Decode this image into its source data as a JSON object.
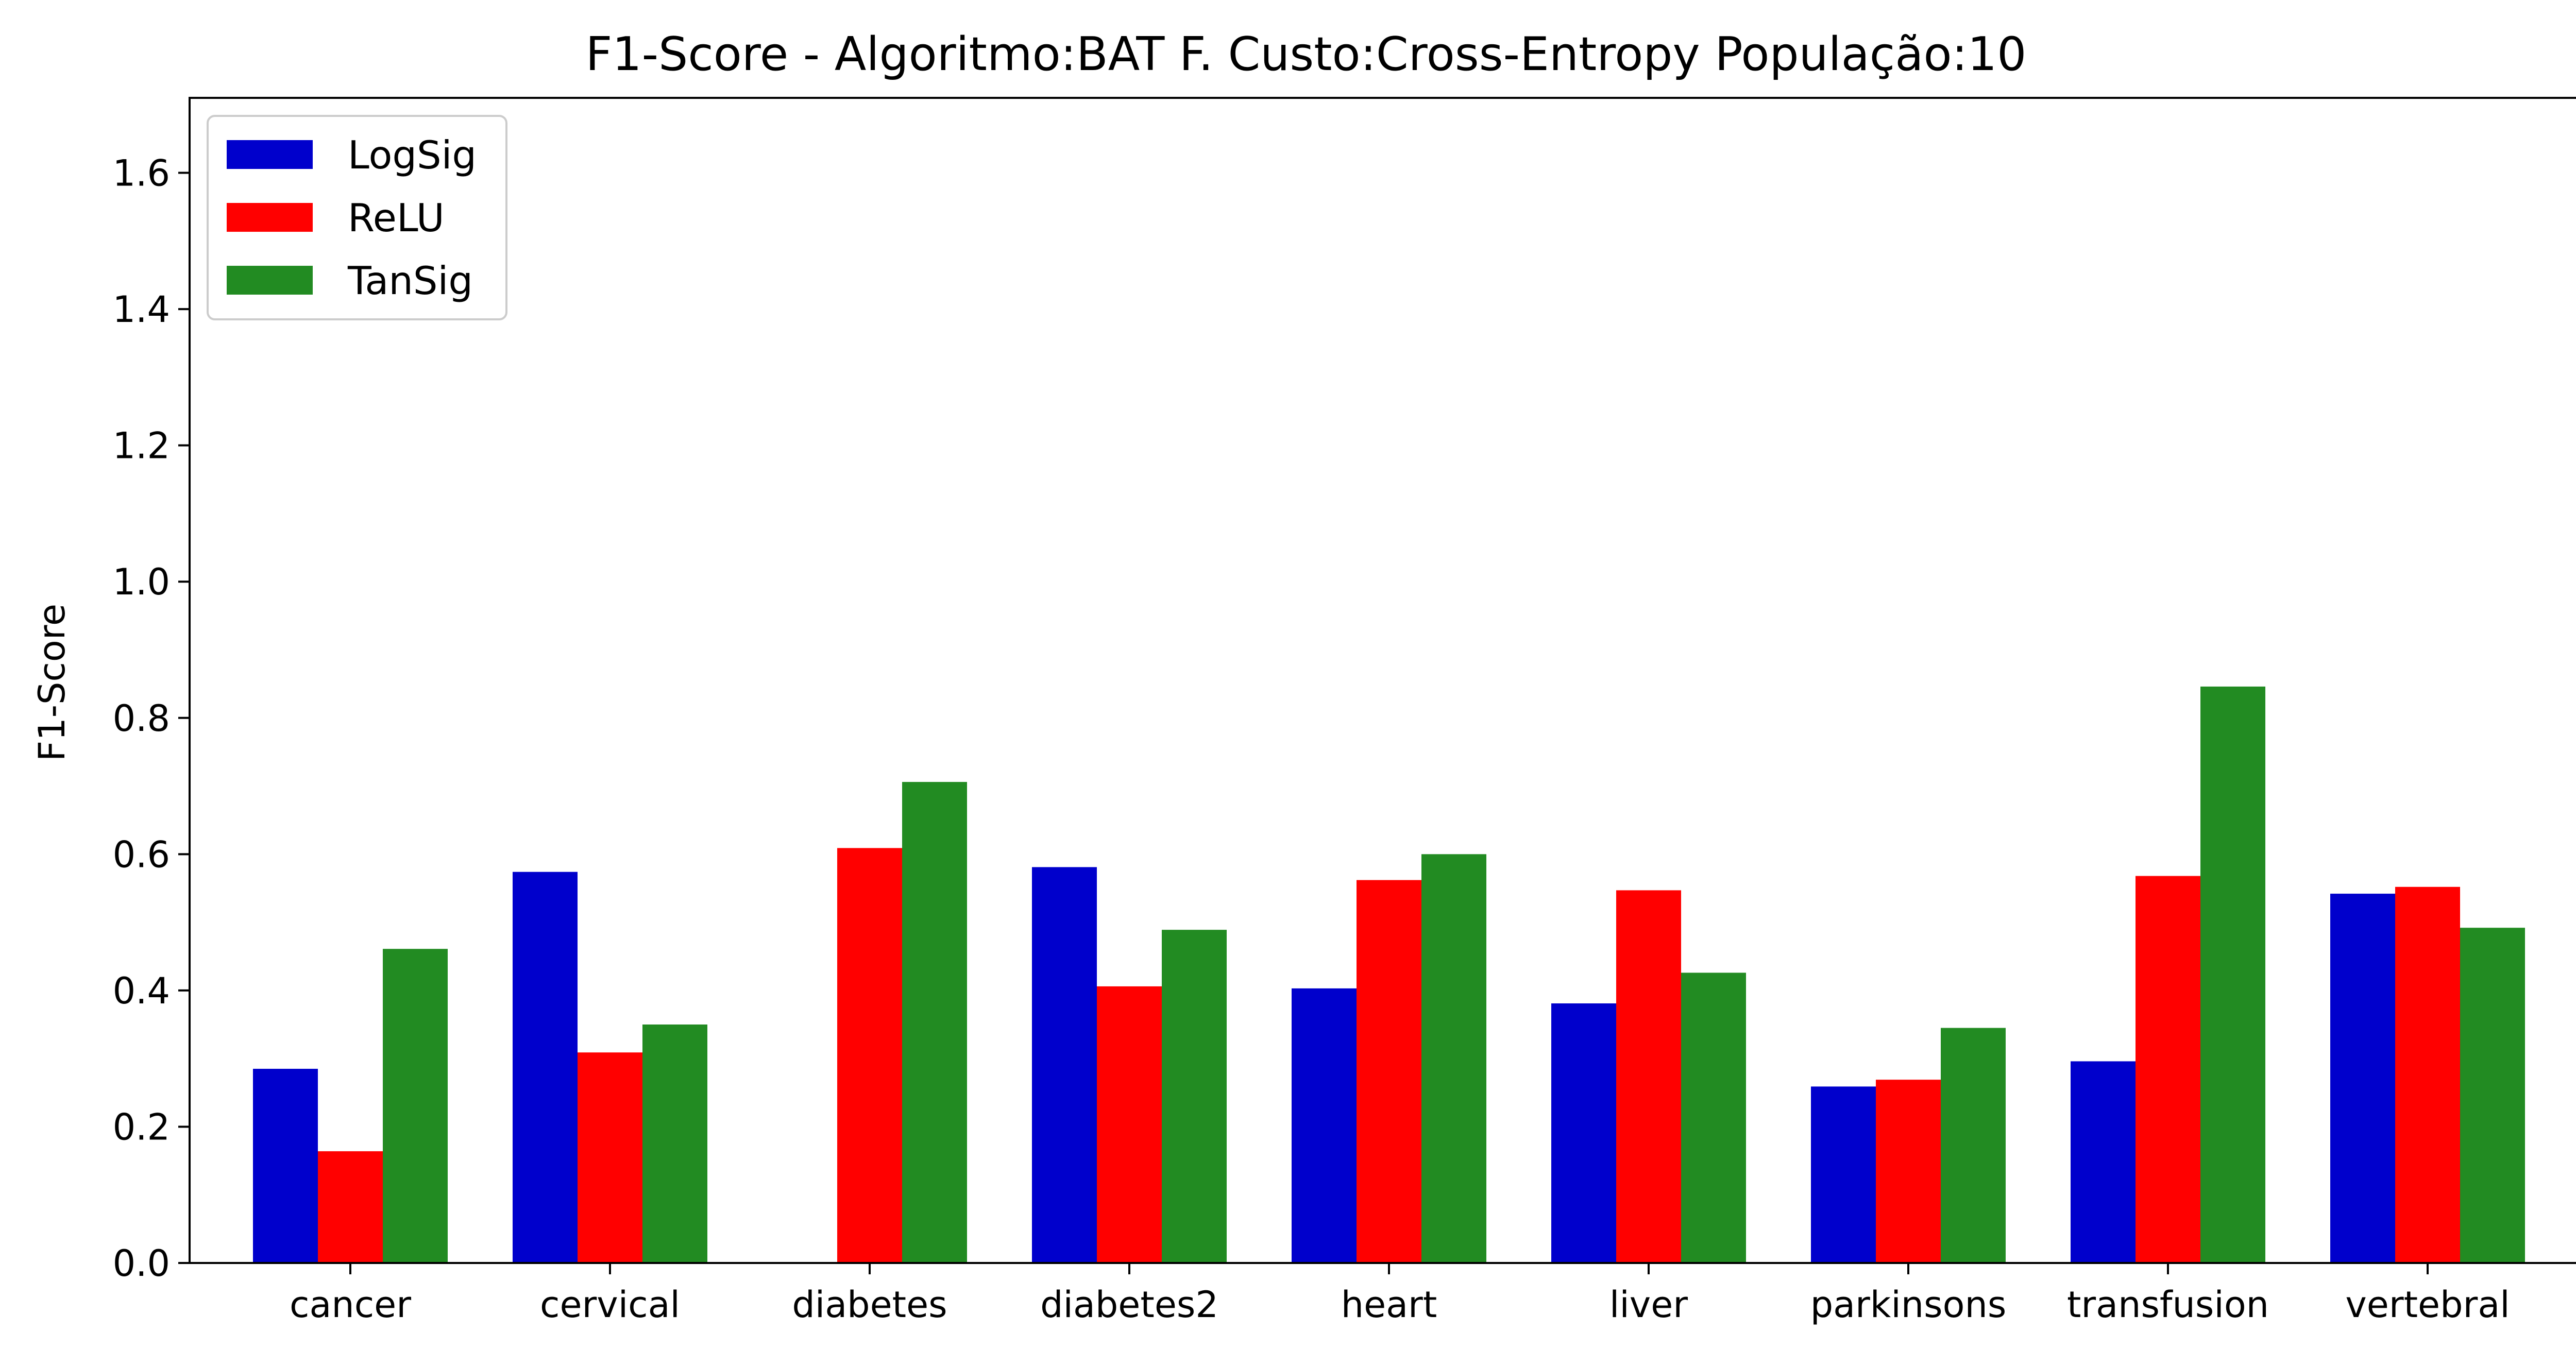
{
  "chart_data": {
    "type": "bar",
    "title": "F1-Score - Algoritmo:BAT F. Custo:Cross-Entropy População:10",
    "xlabel": "",
    "ylabel": "F1-Score",
    "ylim": [
      0,
      1.71
    ],
    "yticks": [
      "0.0",
      "0.2",
      "0.4",
      "0.6",
      "0.8",
      "1.0",
      "1.2",
      "1.4",
      "1.6"
    ],
    "grid": false,
    "legend_position": "top-left",
    "categories": [
      "cancer",
      "cervical",
      "diabetes",
      "diabetes2",
      "heart",
      "liver",
      "parkinsons",
      "transfusion",
      "vertebral"
    ],
    "series": [
      {
        "name": "LogSig",
        "color": "#0000cc",
        "values": [
          0.285,
          0.574,
          0.0,
          0.581,
          0.403,
          0.381,
          0.259,
          0.296,
          0.542
        ]
      },
      {
        "name": "ReLU",
        "color": "#ff0000",
        "values": [
          0.164,
          0.309,
          0.609,
          0.406,
          0.562,
          0.547,
          0.269,
          0.568,
          0.552
        ]
      },
      {
        "name": "TanSig",
        "color": "#228b22",
        "values": [
          0.461,
          0.35,
          0.706,
          0.489,
          0.6,
          0.426,
          0.345,
          0.846,
          0.492
        ]
      }
    ]
  }
}
